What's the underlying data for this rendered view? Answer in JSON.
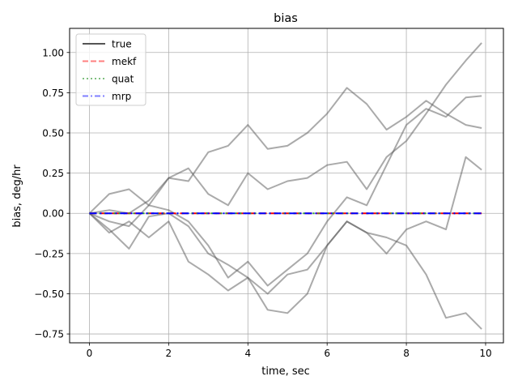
{
  "chart_data": {
    "type": "line",
    "title": "bias",
    "xlabel": "time, sec",
    "ylabel": "bias, deg/hr",
    "xlim": [
      -0.5,
      10.45
    ],
    "ylim": [
      -0.805,
      1.15
    ],
    "grid": true,
    "legend_placement": "top-left",
    "x_ticks": [
      0,
      2,
      4,
      6,
      8,
      10
    ],
    "x_tick_labels": [
      "0",
      "2",
      "4",
      "6",
      "8",
      "10"
    ],
    "y_ticks": [
      -0.75,
      -0.5,
      -0.25,
      0.0,
      0.25,
      0.5,
      0.75,
      1.0
    ],
    "y_tick_labels": [
      "−0.75",
      "−0.50",
      "−0.25",
      "0.00",
      "0.25",
      "0.50",
      "0.75",
      "1.00"
    ],
    "legend": [
      {
        "label": "true",
        "color": "#555555",
        "style": "solid"
      },
      {
        "label": "mekf",
        "color": "#ff7f7f",
        "style": "dashed"
      },
      {
        "label": "quat",
        "color": "#7fbf7f",
        "style": "dotted"
      },
      {
        "label": "mrp",
        "color": "#7f7fff",
        "style": "dashdot"
      }
    ],
    "series": [
      {
        "name": "true",
        "color": "#555555",
        "x": [
          0,
          0.5,
          1,
          1.5,
          2,
          2.5,
          3,
          3.5,
          4,
          4.5,
          5,
          5.5,
          6,
          6.5,
          7,
          7.5,
          8,
          8.5,
          9,
          9.5,
          9.9
        ],
        "values": [
          0.0,
          0.12,
          0.15,
          0.05,
          0.22,
          0.2,
          0.38,
          0.42,
          0.55,
          0.4,
          0.42,
          0.5,
          0.62,
          0.78,
          0.68,
          0.52,
          0.6,
          0.7,
          0.62,
          0.55,
          0.53
        ]
      },
      {
        "name": "true",
        "color": "#555555",
        "x": [
          0,
          0.5,
          1,
          1.5,
          2,
          2.5,
          3,
          3.5,
          4,
          4.5,
          5,
          5.5,
          6,
          6.5,
          7,
          7.5,
          8,
          8.5,
          9,
          9.5,
          9.9
        ],
        "values": [
          0.0,
          0.02,
          0.0,
          0.08,
          0.22,
          0.28,
          0.12,
          0.05,
          0.25,
          0.15,
          0.2,
          0.22,
          0.3,
          0.32,
          0.15,
          0.35,
          0.45,
          0.62,
          0.8,
          0.95,
          1.06
        ]
      },
      {
        "name": "true",
        "color": "#555555",
        "x": [
          0,
          0.5,
          1,
          1.5,
          2,
          2.5,
          3,
          3.5,
          4,
          4.5,
          5,
          5.5,
          6,
          6.5,
          7,
          7.5,
          8,
          8.5,
          9,
          9.5,
          9.9
        ],
        "values": [
          0.0,
          -0.05,
          -0.08,
          0.05,
          0.02,
          -0.05,
          -0.2,
          -0.4,
          -0.3,
          -0.45,
          -0.35,
          -0.25,
          -0.05,
          0.1,
          0.05,
          0.3,
          0.55,
          0.65,
          0.6,
          0.72,
          0.73
        ]
      },
      {
        "name": "true",
        "color": "#555555",
        "x": [
          0,
          0.5,
          1,
          1.5,
          2,
          2.5,
          3,
          3.5,
          4,
          4.5,
          5,
          5.5,
          6,
          6.5,
          7,
          7.5,
          8,
          8.5,
          9,
          9.5,
          9.9
        ],
        "values": [
          0.0,
          -0.1,
          -0.22,
          -0.02,
          0.0,
          -0.08,
          -0.25,
          -0.32,
          -0.4,
          -0.6,
          -0.62,
          -0.5,
          -0.2,
          -0.05,
          -0.12,
          -0.25,
          -0.1,
          -0.05,
          -0.1,
          0.35,
          0.27
        ]
      },
      {
        "name": "true",
        "color": "#555555",
        "x": [
          0,
          0.5,
          1,
          1.5,
          2,
          2.5,
          3,
          3.5,
          4,
          4.5,
          5,
          5.5,
          6,
          6.5,
          7,
          7.5,
          8,
          8.5,
          9,
          9.5,
          9.9
        ],
        "values": [
          0.0,
          -0.12,
          -0.05,
          -0.15,
          -0.05,
          -0.3,
          -0.38,
          -0.48,
          -0.4,
          -0.5,
          -0.38,
          -0.35,
          -0.2,
          -0.05,
          -0.12,
          -0.15,
          -0.2,
          -0.38,
          -0.65,
          -0.62,
          -0.72
        ]
      },
      {
        "name": "mekf",
        "color": "#ff0000",
        "x": [
          0,
          9.9
        ],
        "values": [
          0.0,
          0.0
        ]
      },
      {
        "name": "quat",
        "color": "#2ca02c",
        "x": [
          0,
          9.9
        ],
        "values": [
          0.0,
          0.0
        ]
      },
      {
        "name": "mrp",
        "color": "#0000ff",
        "x": [
          0,
          9.9
        ],
        "values": [
          0.0,
          0.0
        ]
      }
    ]
  }
}
